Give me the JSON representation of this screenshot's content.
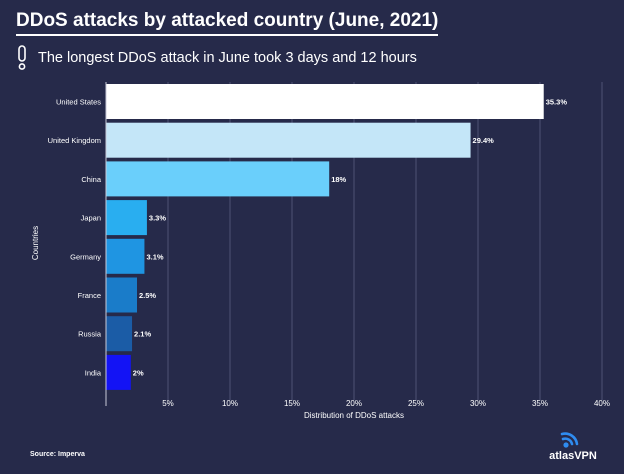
{
  "header": {
    "title": "DDoS attacks by attacked country (June, 2021)",
    "subtitle": "The longest DDoS attack in June took 3 days and 12 hours"
  },
  "footer": {
    "source": "Source: Imperva",
    "logo_text": "atlasVPN"
  },
  "chart_data": {
    "type": "bar",
    "orientation": "horizontal",
    "ylabel": "Countries",
    "xlabel": "Distribution of DDoS attacks",
    "xlim": [
      0,
      40
    ],
    "xticks": [
      5,
      10,
      15,
      20,
      25,
      30,
      35,
      40
    ],
    "xtick_labels": [
      "5%",
      "10%",
      "15%",
      "20%",
      "25%",
      "30%",
      "35%",
      "40%"
    ],
    "grid": true,
    "categories": [
      "United States",
      "United Kingdom",
      "China",
      "Japan",
      "Germany",
      "France",
      "Russia",
      "India"
    ],
    "values": [
      35.3,
      29.4,
      18,
      3.3,
      3.1,
      2.5,
      2.1,
      2
    ],
    "value_labels": [
      "35.3%",
      "29.4%",
      "18%",
      "3.3%",
      "3.1%",
      "2.5%",
      "2.1%",
      "2%"
    ],
    "colors": [
      "#ffffff",
      "#c4e6f8",
      "#6acffb",
      "#29aef0",
      "#1f95e2",
      "#1a7cc9",
      "#1b5ca6",
      "#1313f5"
    ]
  },
  "colors": {
    "background": "#262a4a",
    "grid": "#4e5274",
    "axis": "#c8cad8"
  }
}
